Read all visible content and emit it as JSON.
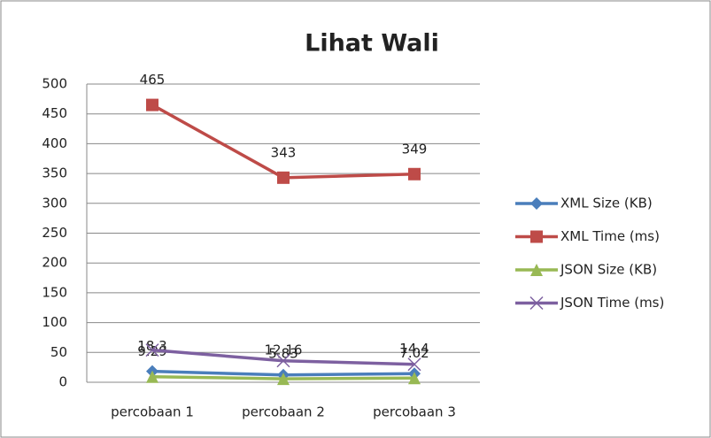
{
  "chart_data": {
    "type": "line",
    "title": "Lihat Wali",
    "categories": [
      "percobaan 1",
      "percobaan 2",
      "percobaan 3"
    ],
    "series": [
      {
        "name": "XML Size (KB)",
        "color": "#4a7ebb",
        "marker": "diamond",
        "values": [
          18.3,
          12.16,
          14.4
        ],
        "labels": true
      },
      {
        "name": "XML Time (ms)",
        "color": "#be4b48",
        "marker": "square",
        "values": [
          465,
          343,
          349
        ],
        "labels": true
      },
      {
        "name": "JSON Size (KB)",
        "color": "#98b954",
        "marker": "triangle",
        "values": [
          9.29,
          5.83,
          7.02
        ],
        "labels": true
      },
      {
        "name": "JSON Time (ms)",
        "color": "#7d60a0",
        "marker": "x",
        "values": [
          54,
          36,
          30
        ],
        "labels": false
      }
    ],
    "ylim": [
      0,
      500
    ],
    "yticks": [
      0,
      50,
      100,
      150,
      200,
      250,
      300,
      350,
      400,
      450,
      500
    ],
    "grid": true,
    "legend": "right"
  }
}
